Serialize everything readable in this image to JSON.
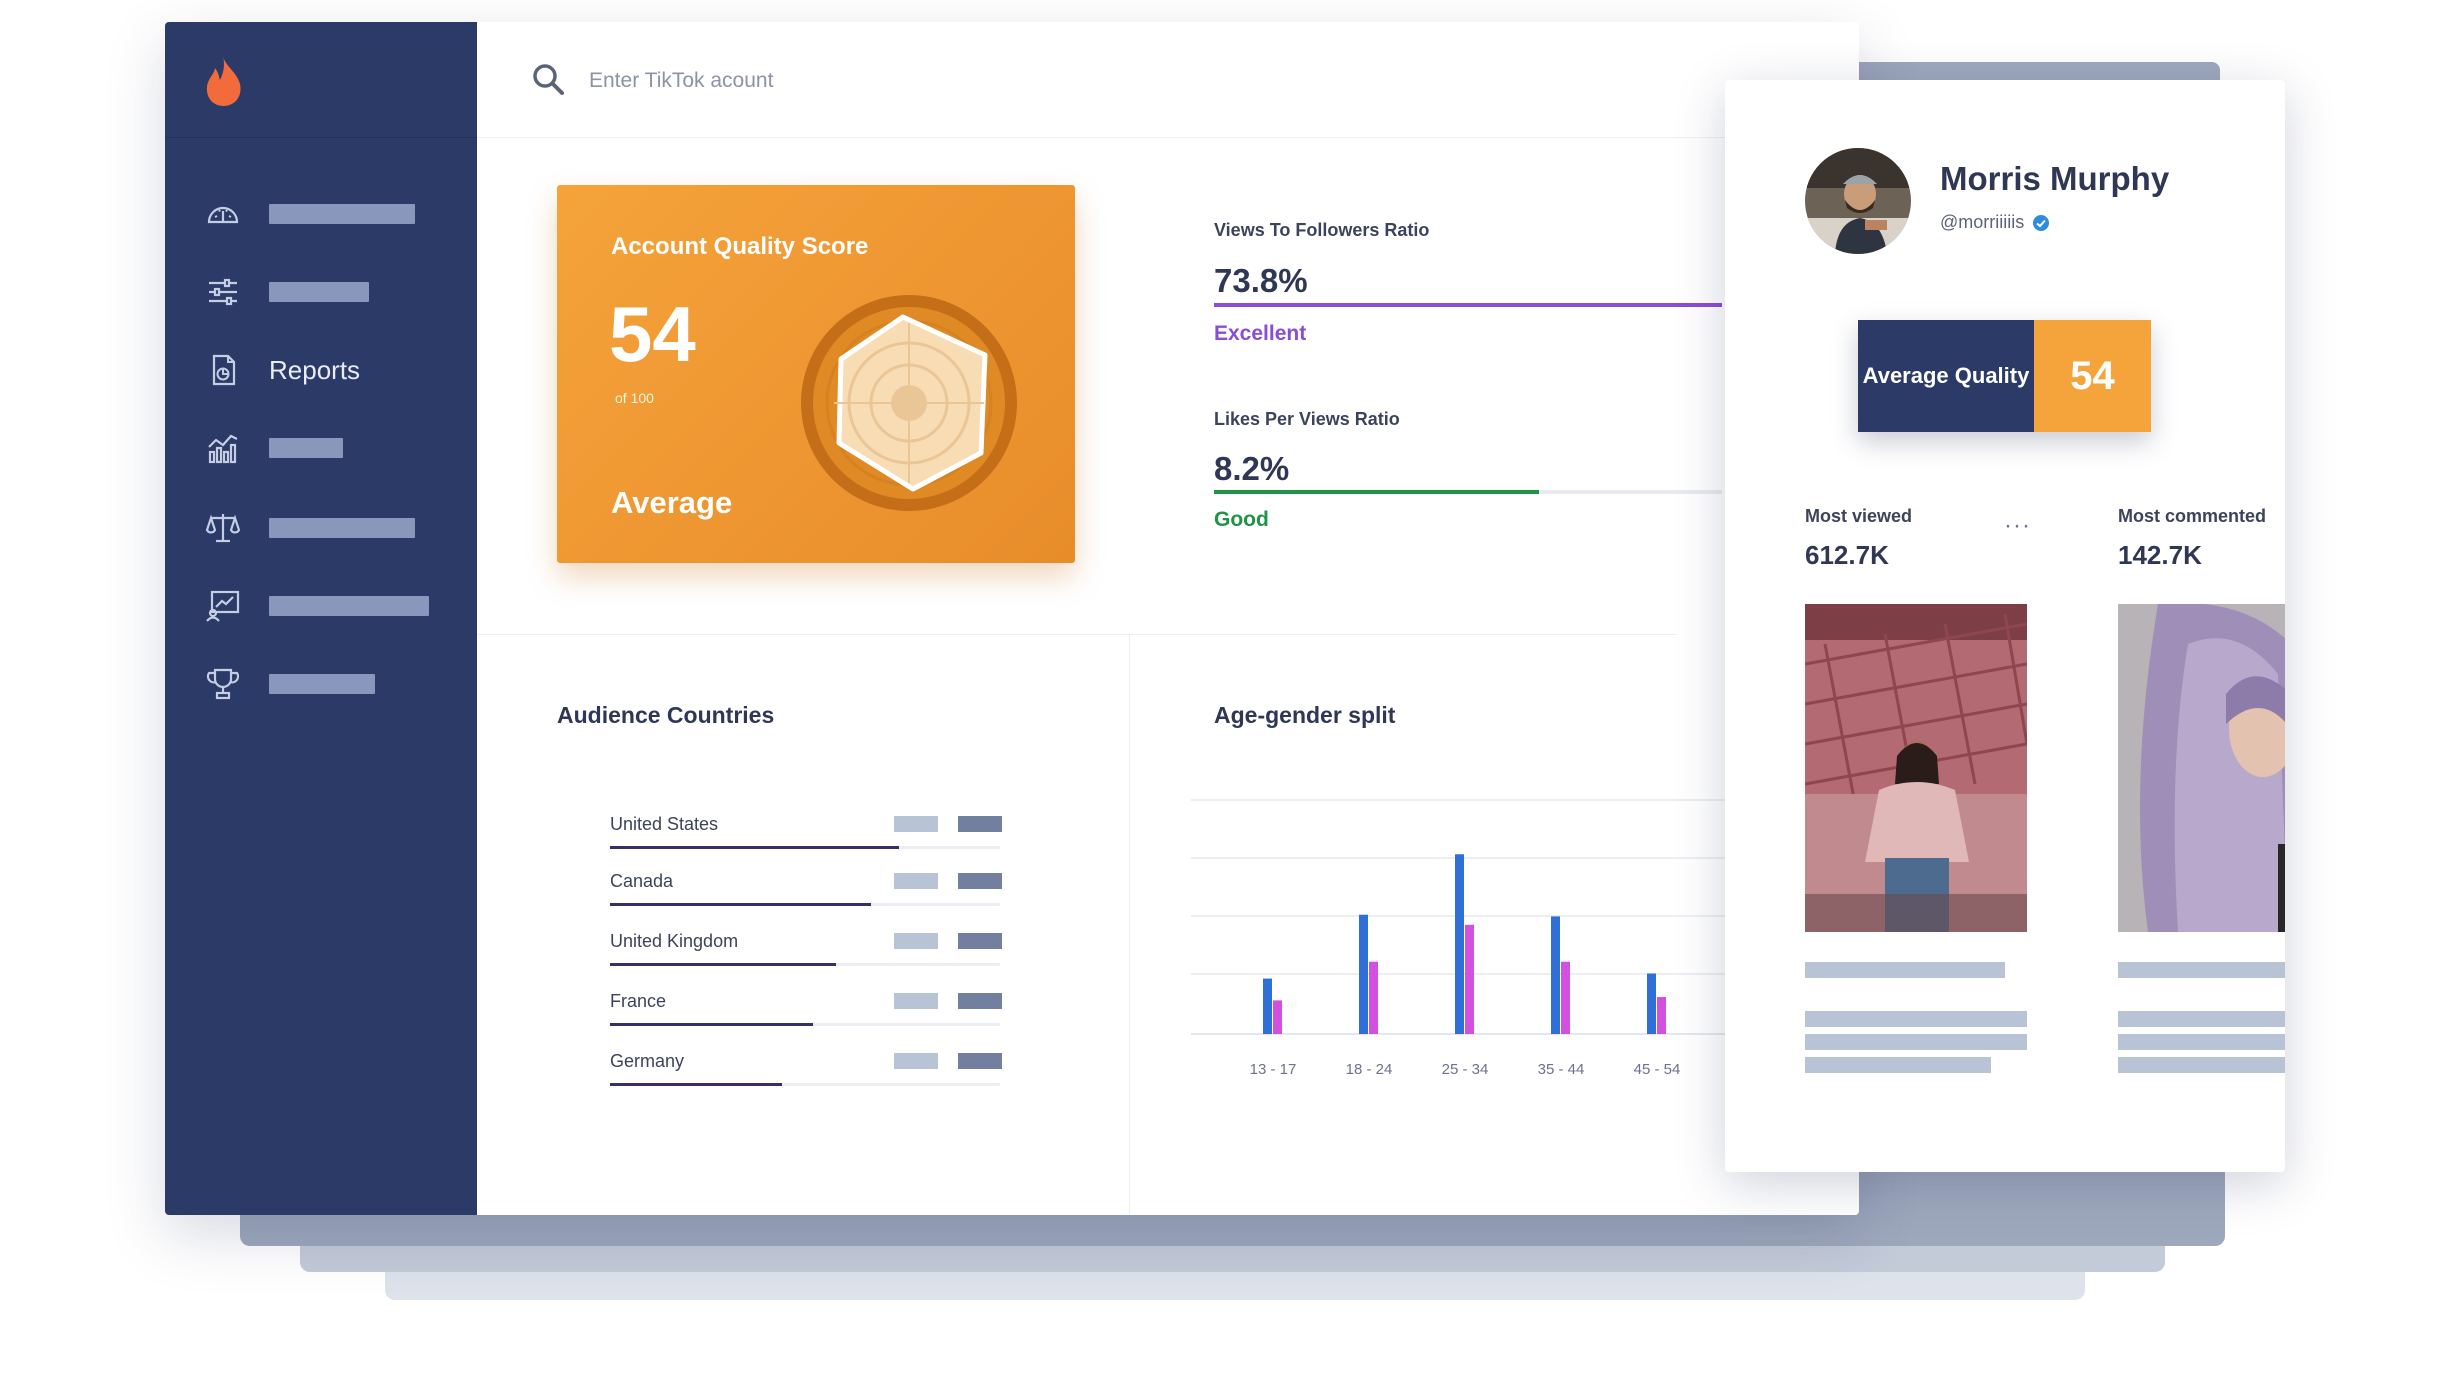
{
  "search": {
    "placeholder": "Enter TikTok acount"
  },
  "sidebar": {
    "items": [
      {
        "icon": "dashboard-icon"
      },
      {
        "icon": "sliders-icon"
      },
      {
        "icon": "reports-icon",
        "label": "Reports"
      },
      {
        "icon": "bar-chart-icon"
      },
      {
        "icon": "balance-scale-icon"
      },
      {
        "icon": "presentation-icon"
      },
      {
        "icon": "trophy-icon"
      }
    ]
  },
  "score": {
    "title": "Account Quality Score",
    "value": "54",
    "of": "of 100",
    "rating": "Average"
  },
  "metrics": [
    {
      "title": "Views To Followers Ratio",
      "value": "73.8%",
      "rating": "Excellent",
      "fill": 1.0,
      "color": "#8a4dd6"
    },
    {
      "title": "Likes Per Views Ratio",
      "value": "8.2%",
      "rating": "Good",
      "fill": 0.64,
      "color": "#1f9446"
    }
  ],
  "audience": {
    "title": "Audience Countries",
    "countries": [
      {
        "name": "United States",
        "share": 0.74
      },
      {
        "name": "Canada",
        "share": 0.67
      },
      {
        "name": "United Kingdom",
        "share": 0.58
      },
      {
        "name": "France",
        "share": 0.52
      },
      {
        "name": "Germany",
        "share": 0.44
      }
    ]
  },
  "age_gender": {
    "title": "Age-gender split"
  },
  "chart_data": {
    "type": "bar",
    "title": "Age-gender split",
    "categories": [
      "13 - 17",
      "18 - 24",
      "25 - 34",
      "35 - 44",
      "45 - 54"
    ],
    "series": [
      {
        "values": [
          0.33,
          0.71,
          1.07,
          0.7,
          0.36
        ],
        "color": "#2f6fd8"
      },
      {
        "values": [
          0.2,
          0.43,
          0.65,
          0.43,
          0.22
        ],
        "color": "#d150df"
      }
    ],
    "ylim": [
      0,
      1.5
    ],
    "grid": true
  },
  "profile": {
    "name": "Morris Murphy",
    "handle": "@morriiiiis",
    "quality_label": "Average Quality",
    "quality_value": "54",
    "most_viewed_label": "Most viewed",
    "most_viewed_value": "612.7K",
    "more_label": "···",
    "most_commented_label": "Most commented",
    "most_commented_value": "142.7K"
  }
}
